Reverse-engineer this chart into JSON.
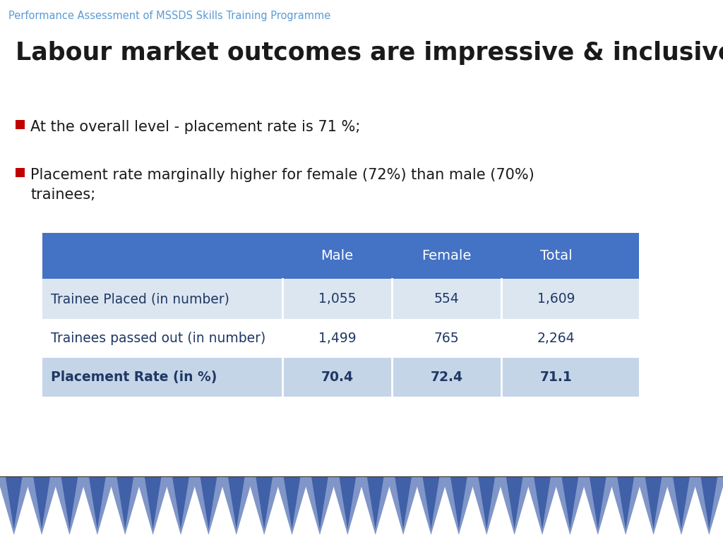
{
  "header_title": "Performance Assessment of MSSDS Skills Training Programme",
  "header_color": "#5B9BD5",
  "main_title": "Labour market outcomes are impressive & inclusive",
  "bullet1": "At the overall level - placement rate is 71 %;",
  "bullet2": "Placement rate marginally higher for female (72%) than male (70%)\ntrainees;",
  "bullet_color": "#C00000",
  "table_header_bg": "#4472C4",
  "table_header_text_color": "#FFFFFF",
  "table_row1_bg": "#DCE6F1",
  "table_row2_bg": "#FFFFFF",
  "table_row3_bg": "#C5D5E8",
  "table_headers": [
    "",
    "Male",
    "Female",
    "Total"
  ],
  "table_row1_label": "Trainee Placed (in number)",
  "table_row1_values": [
    "1,055",
    "554",
    "1,609"
  ],
  "table_row2_label": "Trainees passed out (in number)",
  "table_row2_values": [
    "1,499",
    "765",
    "2,264"
  ],
  "table_row3_label": "Placement Rate (in %)",
  "table_row3_values": [
    "70.4",
    "72.4",
    "71.1"
  ],
  "table_text_color": "#1F3864",
  "background_color": "#FFFFFF",
  "text_color": "#1A1A1A"
}
